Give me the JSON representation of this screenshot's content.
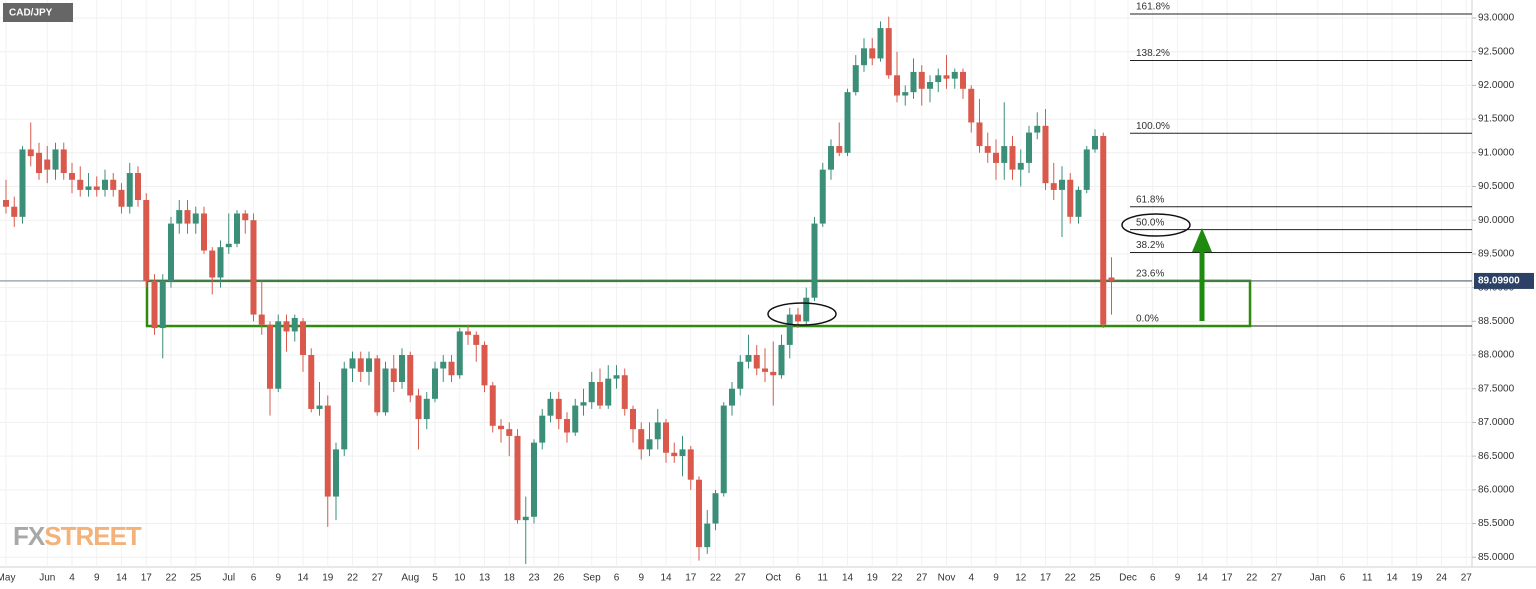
{
  "chart_data": {
    "type": "candlestick",
    "title": "CAD/JPY",
    "logo": [
      "FX",
      "STREET"
    ],
    "categories": [
      "May",
      null,
      null,
      null,
      null,
      "Jun",
      null,
      null,
      "4",
      null,
      null,
      "9",
      null,
      null,
      "14",
      null,
      null,
      "17",
      null,
      null,
      "22",
      null,
      null,
      "25",
      null,
      null,
      null,
      "Jul",
      null,
      null,
      "6",
      null,
      null,
      "9",
      null,
      null,
      "14",
      null,
      null,
      "19",
      null,
      null,
      "22",
      null,
      null,
      "27",
      null,
      null,
      null,
      "Aug",
      null,
      null,
      "5",
      null,
      null,
      "10",
      null,
      null,
      "13",
      null,
      null,
      "18",
      null,
      null,
      "23",
      null,
      null,
      "26",
      null,
      null,
      null,
      "Sep",
      null,
      null,
      "6",
      null,
      null,
      "9",
      null,
      null,
      "14",
      null,
      null,
      "17",
      null,
      null,
      "22",
      null,
      null,
      "27",
      null,
      null,
      null,
      "Oct",
      null,
      null,
      "6",
      null,
      null,
      "11",
      null,
      null,
      "14",
      null,
      null,
      "19",
      null,
      null,
      "22",
      null,
      null,
      "27",
      null,
      null,
      "Nov",
      null,
      null,
      "4",
      null,
      null,
      "9",
      null,
      null,
      "12",
      null,
      null,
      "17",
      null,
      null,
      "22",
      null,
      null,
      "25",
      null,
      null,
      null,
      "Dec",
      null,
      null,
      "6",
      null,
      null,
      "9",
      null,
      null,
      "14",
      null,
      null,
      "17",
      null,
      null,
      "22",
      null,
      null,
      "27",
      null,
      null,
      null,
      null,
      "Jan",
      null,
      null,
      "6",
      null,
      null,
      "11",
      null,
      null,
      "14",
      null,
      null,
      "19",
      null,
      null,
      "24",
      null,
      null,
      "27"
    ],
    "open": [
      90.3,
      90.2,
      90.05,
      91.05,
      91.0,
      90.9,
      90.75,
      91.05,
      90.7,
      90.6,
      90.45,
      90.5,
      90.45,
      90.6,
      90.45,
      90.2,
      90.7,
      90.3,
      89.1,
      88.4,
      89.1,
      89.95,
      90.15,
      89.95,
      90.1,
      89.55,
      89.15,
      89.6,
      89.65,
      90.1,
      90.0,
      88.6,
      88.45,
      87.5,
      88.5,
      88.35,
      88.5,
      88.0,
      87.2,
      87.25,
      85.9,
      86.6,
      87.8,
      87.95,
      87.75,
      87.95,
      87.15,
      87.8,
      87.6,
      88.0,
      87.4,
      87.05,
      87.35,
      87.8,
      87.9,
      87.7,
      88.35,
      88.3,
      88.15,
      87.55,
      86.95,
      86.9,
      86.8,
      85.55,
      85.6,
      86.7,
      87.1,
      87.35,
      87.05,
      86.85,
      87.25,
      87.3,
      87.6,
      87.25,
      87.65,
      87.7,
      87.2,
      86.9,
      86.6,
      86.75,
      87.0,
      86.55,
      86.5,
      86.6,
      86.15,
      85.15,
      85.5,
      85.95,
      87.25,
      87.5,
      87.9,
      88.0,
      87.8,
      87.75,
      87.7,
      88.15,
      88.6,
      88.5,
      88.85,
      89.95,
      90.75,
      91.1,
      91.0,
      91.9,
      92.3,
      92.55,
      92.4,
      92.85,
      92.15,
      91.85,
      91.9,
      92.2,
      91.95,
      92.05,
      92.15,
      92.1,
      92.2,
      91.95,
      91.45,
      91.1,
      91.0,
      90.85,
      91.1,
      90.75,
      90.85,
      91.3,
      91.4,
      90.55,
      90.45,
      90.6,
      90.05,
      90.45,
      91.05,
      91.25,
      89.15,
      null,
      null,
      null,
      null,
      null,
      null,
      null,
      null,
      null,
      null,
      null,
      null,
      null,
      null,
      null,
      null,
      null,
      null,
      null,
      null,
      null,
      null,
      null,
      null,
      null,
      null,
      null,
      null,
      null,
      null,
      null,
      null,
      null,
      null,
      null,
      null,
      null,
      null,
      null,
      null,
      null,
      null,
      null
    ],
    "high": [
      90.6,
      90.35,
      91.1,
      91.45,
      91.15,
      91.1,
      91.15,
      91.15,
      90.85,
      90.8,
      90.7,
      90.65,
      90.75,
      90.7,
      90.55,
      90.85,
      90.8,
      90.4,
      89.2,
      89.2,
      90.05,
      90.3,
      90.3,
      90.2,
      90.2,
      89.6,
      89.7,
      90.1,
      90.15,
      90.15,
      90.1,
      89.1,
      88.5,
      88.6,
      88.6,
      88.6,
      88.55,
      88.1,
      87.6,
      87.4,
      86.7,
      87.9,
      88.05,
      88.05,
      88.05,
      88.0,
      87.9,
      88.0,
      88.1,
      88.05,
      87.5,
      87.45,
      87.9,
      88.0,
      88.0,
      88.4,
      88.45,
      88.35,
      88.2,
      87.6,
      87.05,
      87.0,
      86.9,
      85.9,
      86.75,
      87.2,
      87.45,
      87.45,
      87.15,
      87.35,
      87.5,
      87.75,
      87.8,
      87.85,
      87.85,
      87.8,
      87.25,
      87.0,
      87.0,
      87.2,
      87.05,
      86.7,
      86.8,
      86.65,
      86.2,
      85.7,
      86.0,
      87.3,
      87.6,
      88.0,
      88.3,
      88.15,
      88.1,
      88.2,
      88.3,
      88.7,
      88.7,
      89.0,
      90.05,
      90.85,
      91.2,
      91.45,
      91.95,
      92.45,
      92.7,
      92.7,
      92.95,
      93.02,
      92.5,
      92.0,
      92.4,
      92.3,
      92.15,
      92.25,
      92.45,
      92.25,
      92.25,
      92.0,
      91.8,
      91.3,
      91.2,
      91.75,
      91.25,
      91.05,
      91.4,
      91.6,
      91.65,
      90.85,
      90.8,
      90.7,
      90.5,
      91.1,
      91.35,
      91.3,
      89.45,
      null,
      null,
      null,
      null,
      null,
      null,
      null,
      null,
      null,
      null,
      null,
      null,
      null,
      null,
      null,
      null,
      null,
      null,
      null,
      null,
      null,
      null,
      null,
      null,
      null,
      null,
      null,
      null,
      null,
      null,
      null,
      null,
      null,
      null,
      null,
      null,
      null,
      null,
      null,
      null,
      null,
      null,
      null
    ],
    "low": [
      90.1,
      89.9,
      89.95,
      90.8,
      90.6,
      90.55,
      90.6,
      90.6,
      90.4,
      90.35,
      90.35,
      90.35,
      90.35,
      90.35,
      90.1,
      90.1,
      90.2,
      89.0,
      88.3,
      87.95,
      89.0,
      89.8,
      89.8,
      89.8,
      89.5,
      88.9,
      89.0,
      89.5,
      89.6,
      89.8,
      88.5,
      88.3,
      87.1,
      87.45,
      88.05,
      88.2,
      87.75,
      87.15,
      87.1,
      85.45,
      85.55,
      86.5,
      87.6,
      87.6,
      87.55,
      87.1,
      87.1,
      87.45,
      87.5,
      87.3,
      86.6,
      86.9,
      87.3,
      87.6,
      87.6,
      87.65,
      88.15,
      87.9,
      87.45,
      86.85,
      86.7,
      86.5,
      85.5,
      84.9,
      85.5,
      86.6,
      87.0,
      86.9,
      86.7,
      86.8,
      87.1,
      87.2,
      87.2,
      87.2,
      87.5,
      87.1,
      86.7,
      86.45,
      86.5,
      86.6,
      86.4,
      86.4,
      86.2,
      86.0,
      84.95,
      85.05,
      85.4,
      85.9,
      87.1,
      87.4,
      87.8,
      87.7,
      87.6,
      87.25,
      87.65,
      87.95,
      88.4,
      88.45,
      88.8,
      89.9,
      90.6,
      90.95,
      90.95,
      91.85,
      92.2,
      92.3,
      92.35,
      92.1,
      91.75,
      91.7,
      91.8,
      91.7,
      91.75,
      91.9,
      91.95,
      91.95,
      91.8,
      91.3,
      91.0,
      90.85,
      90.6,
      90.6,
      90.6,
      90.5,
      90.7,
      91.2,
      90.45,
      90.3,
      89.75,
      89.95,
      89.95,
      90.4,
      91.0,
      88.4,
      88.6,
      null,
      null,
      null,
      null,
      null,
      null,
      null,
      null,
      null,
      null,
      null,
      null,
      null,
      null,
      null,
      null,
      null,
      null,
      null,
      null,
      null,
      null,
      null,
      null,
      null,
      null,
      null,
      null,
      null,
      null,
      null,
      null,
      null,
      null,
      null,
      null,
      null,
      null,
      null,
      null,
      null,
      null,
      null
    ],
    "close": [
      90.2,
      90.05,
      91.05,
      90.95,
      90.7,
      90.75,
      91.05,
      90.7,
      90.6,
      90.45,
      90.5,
      90.45,
      90.6,
      90.45,
      90.2,
      90.7,
      90.3,
      89.1,
      88.4,
      89.1,
      89.95,
      90.15,
      89.95,
      90.1,
      89.55,
      89.15,
      89.6,
      89.65,
      90.1,
      90.0,
      88.6,
      88.45,
      87.5,
      88.5,
      88.35,
      88.55,
      88.0,
      87.2,
      87.25,
      85.9,
      86.6,
      87.8,
      87.95,
      87.75,
      87.95,
      87.15,
      87.8,
      87.6,
      88.0,
      87.4,
      87.05,
      87.35,
      87.8,
      87.9,
      87.7,
      88.35,
      88.3,
      88.15,
      87.55,
      86.95,
      86.9,
      86.8,
      85.55,
      85.6,
      86.7,
      87.1,
      87.35,
      87.05,
      86.85,
      87.25,
      87.3,
      87.6,
      87.25,
      87.65,
      87.7,
      87.2,
      86.9,
      86.6,
      86.75,
      87.0,
      86.55,
      86.5,
      86.6,
      86.15,
      85.15,
      85.5,
      85.95,
      87.25,
      87.5,
      87.9,
      88.0,
      87.8,
      87.75,
      87.7,
      88.15,
      88.6,
      88.5,
      88.85,
      89.95,
      90.75,
      91.1,
      91.0,
      91.9,
      92.3,
      92.55,
      92.4,
      92.85,
      92.15,
      91.85,
      91.9,
      92.2,
      91.95,
      92.05,
      92.15,
      92.1,
      92.2,
      91.95,
      91.45,
      91.1,
      91.0,
      90.85,
      91.1,
      90.75,
      90.85,
      91.3,
      91.4,
      90.55,
      90.45,
      90.6,
      90.05,
      90.45,
      91.05,
      91.25,
      88.45,
      89.1,
      null,
      null,
      null,
      null,
      null,
      null,
      null,
      null,
      null,
      null,
      null,
      null,
      null,
      null,
      null,
      null,
      null,
      null,
      null,
      null,
      null,
      null,
      null,
      null,
      null,
      null,
      null,
      null,
      null,
      null,
      null,
      null,
      null,
      null,
      null,
      null,
      null,
      null,
      null,
      null,
      null,
      null,
      null
    ],
    "up_color": "#3b8f78",
    "down_color": "#d9594c",
    "ylim": [
      84.855,
      93.267
    ],
    "yticks": [
      {
        "value": 85.0,
        "label": "85.0000"
      },
      {
        "value": 85.5,
        "label": "85.5000"
      },
      {
        "value": 86.0,
        "label": "86.0000"
      },
      {
        "value": 86.5,
        "label": "86.5000"
      },
      {
        "value": 87.0,
        "label": "87.0000"
      },
      {
        "value": 87.5,
        "label": "87.5000"
      },
      {
        "value": 88.0,
        "label": "88.0000"
      },
      {
        "value": 88.5,
        "label": "88.5000"
      },
      {
        "value": 89.0,
        "label": "89.0000"
      },
      {
        "value": 89.5,
        "label": "89.5000"
      },
      {
        "value": 90.0,
        "label": "90.0000"
      },
      {
        "value": 90.5,
        "label": "90.5000"
      },
      {
        "value": 91.0,
        "label": "91.0000"
      },
      {
        "value": 91.5,
        "label": "91.5000"
      },
      {
        "value": 92.0,
        "label": "92.0000"
      },
      {
        "value": 92.5,
        "label": "92.5000"
      },
      {
        "value": 93.0,
        "label": "93.0000"
      }
    ],
    "grid": true,
    "last_price": {
      "value": 89.099,
      "label": "89.09900"
    },
    "fib_levels": [
      {
        "value": 93.06,
        "label": "161.8%"
      },
      {
        "value": 92.37,
        "label": "138.2%"
      },
      {
        "value": 91.29,
        "label": "100.0%"
      },
      {
        "value": 90.2,
        "label": "61.8%"
      },
      {
        "value": 89.86,
        "label": "50.0%"
      },
      {
        "value": 89.52,
        "label": "38.2%"
      },
      {
        "value": 89.1,
        "label": "23.6%"
      },
      {
        "value": 88.43,
        "label": "0.0%"
      }
    ],
    "zone_color": "#2e8b0f"
  }
}
